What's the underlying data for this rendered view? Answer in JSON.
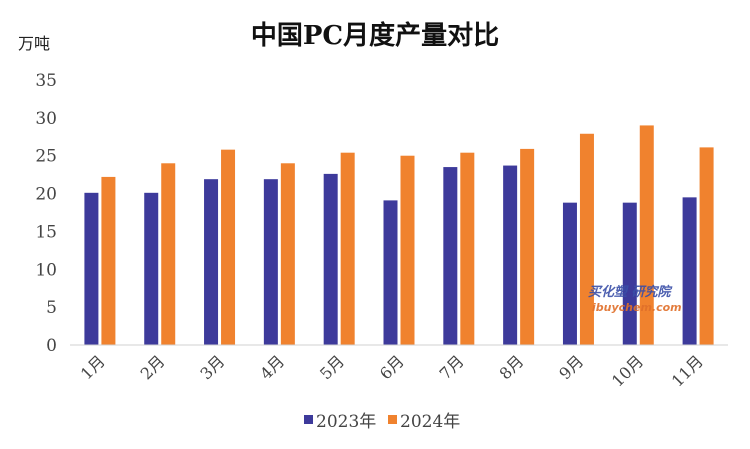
{
  "chart_data": {
    "type": "bar",
    "title": "中国PC月度产量对比",
    "y_unit": "万吨",
    "categories": [
      "1月",
      "2月",
      "3月",
      "4月",
      "5月",
      "6月",
      "7月",
      "8月",
      "9月",
      "10月",
      "11月"
    ],
    "series": [
      {
        "name": "2023年",
        "color": "#3d3a9b",
        "values": [
          20.1,
          20.1,
          21.9,
          21.9,
          22.6,
          19.1,
          23.5,
          23.7,
          18.8,
          18.8,
          19.5
        ]
      },
      {
        "name": "2024年",
        "color": "#f0822e",
        "values": [
          22.2,
          24.0,
          25.8,
          24.0,
          25.4,
          25.0,
          25.4,
          25.9,
          27.9,
          29.0,
          26.1
        ]
      }
    ],
    "yticks": [
      0,
      5,
      10,
      15,
      20,
      25,
      30,
      35
    ],
    "ylim": [
      0,
      35
    ],
    "grid": false,
    "legend_position": "bottom",
    "watermark": {
      "line1": "买化塑 研究院",
      "line2": "ibuychem.com"
    }
  }
}
